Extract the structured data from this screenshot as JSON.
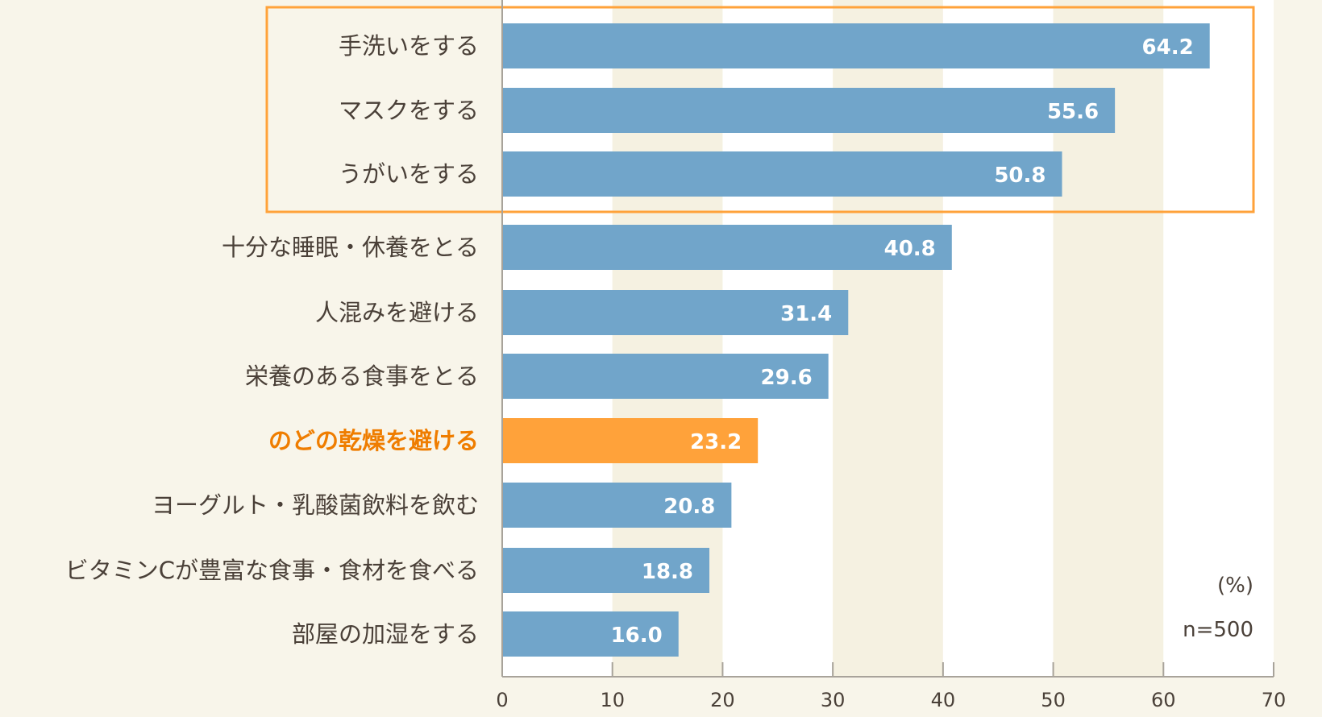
{
  "chart_data": {
    "type": "bar",
    "orientation": "horizontal",
    "categories": [
      "手洗いをする",
      "マスクをする",
      "うがいをする",
      "十分な睡眠・休養をとる",
      "人混みを避ける",
      "栄養のある食事をとる",
      "のどの乾燥を避ける",
      "ヨーグルト・乳酸菌飲料を飲む",
      "ビタミンCが豊富な食事・食材を食べる",
      "部屋の加湿をする"
    ],
    "values": [
      64.2,
      55.6,
      50.8,
      40.8,
      31.4,
      29.6,
      23.2,
      20.8,
      18.8,
      16.0
    ],
    "value_labels": [
      "64.2",
      "55.6",
      "50.8",
      "40.8",
      "31.4",
      "29.6",
      "23.2",
      "20.8",
      "18.8",
      "16.0"
    ],
    "highlighted_category": "のどの乾燥を避ける",
    "boxed_categories": [
      "手洗いをする",
      "マスクをする",
      "うがいをする"
    ],
    "xlim": [
      0,
      70
    ],
    "xticks": [
      "0",
      "10",
      "20",
      "30",
      "40",
      "50",
      "60",
      "70"
    ],
    "unit_label": "(%)",
    "sample_size": "n=500",
    "grid": "alternating bands",
    "colors": {
      "bar": "#71a5ca",
      "highlight": "#ffa23a",
      "highlight_text": "#ef7d00",
      "box": "#ffa23a",
      "band": "#f5f1e1",
      "plot_bg": "#ffffff",
      "page_bg": "#f8f5ea"
    }
  }
}
